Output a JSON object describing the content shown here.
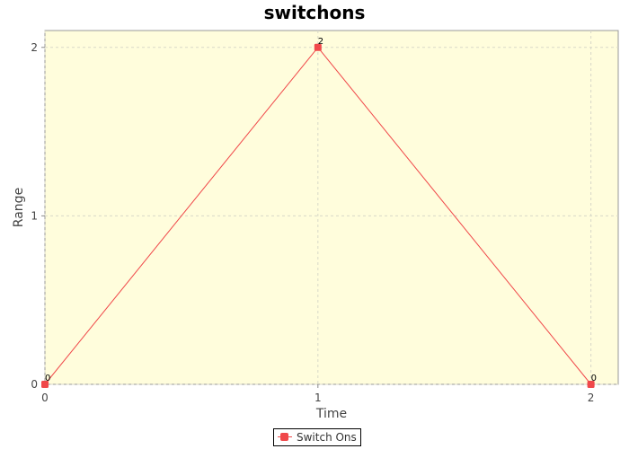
{
  "chart_data": {
    "type": "line",
    "title": "switchons",
    "xlabel": "Time",
    "ylabel": "Range",
    "x": [
      0,
      1,
      2
    ],
    "series": [
      {
        "name": "Switch Ons",
        "values": [
          0,
          2,
          0
        ],
        "color": "#f0484a"
      }
    ],
    "point_labels": [
      "0",
      "2",
      "0"
    ],
    "xlim": [
      0,
      2.1
    ],
    "ylim": [
      0,
      2.1
    ],
    "xticks": [
      0,
      1,
      2
    ],
    "yticks": [
      0,
      1,
      2
    ],
    "grid": true,
    "plot_background": "#fffddc",
    "legend_position": "bottom"
  }
}
